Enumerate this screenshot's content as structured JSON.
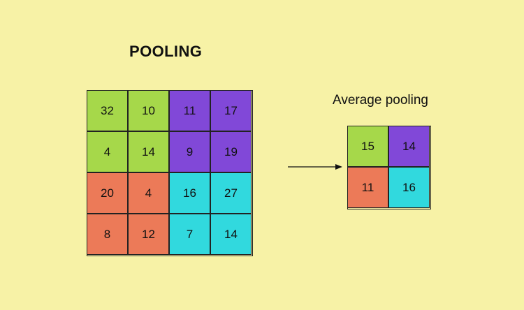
{
  "title": "POOLING",
  "subtitle": "Average pooling",
  "colors": {
    "background": "#f7f2a6",
    "green": "#a6d84a",
    "purple": "#8148d8",
    "orange": "#ec7a58",
    "cyan": "#31d9de"
  },
  "input_grid": {
    "rows": [
      [
        32,
        10,
        11,
        17
      ],
      [
        4,
        14,
        9,
        19
      ],
      [
        20,
        4,
        16,
        27
      ],
      [
        8,
        12,
        7,
        14
      ]
    ],
    "row_colors": [
      [
        "green",
        "green",
        "purple",
        "purple"
      ],
      [
        "green",
        "green",
        "purple",
        "purple"
      ],
      [
        "orange",
        "orange",
        "cyan",
        "cyan"
      ],
      [
        "orange",
        "orange",
        "cyan",
        "cyan"
      ]
    ]
  },
  "output_grid": {
    "rows": [
      [
        15,
        14
      ],
      [
        11,
        16
      ]
    ],
    "row_colors": [
      [
        "green",
        "purple"
      ],
      [
        "orange",
        "cyan"
      ]
    ]
  }
}
